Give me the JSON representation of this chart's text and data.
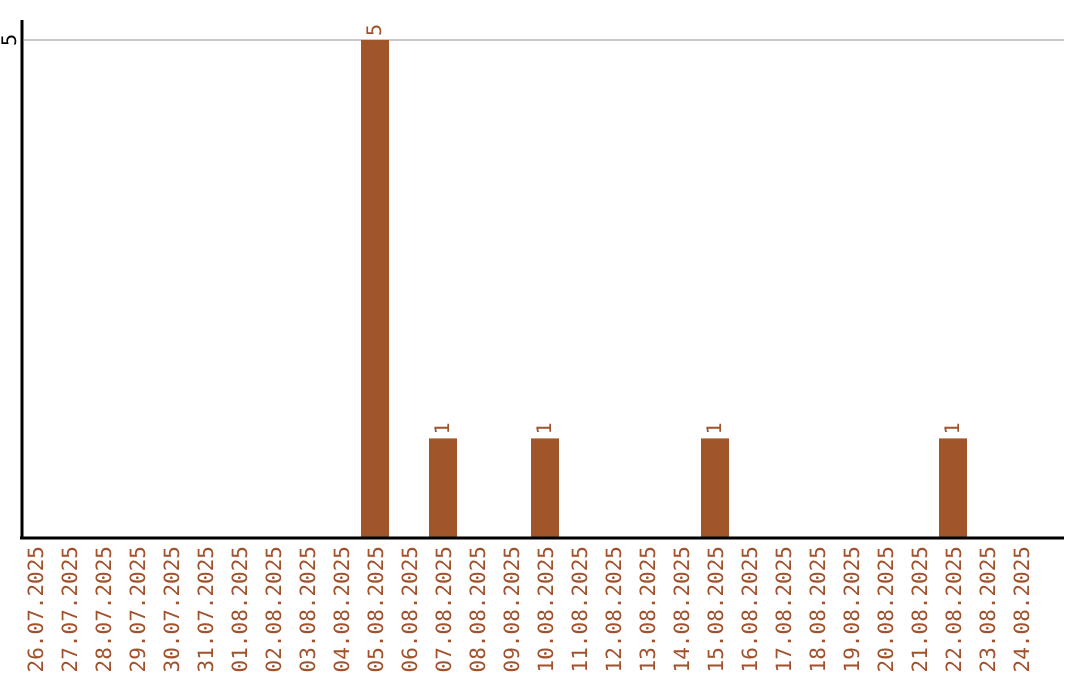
{
  "chart_data": {
    "type": "bar",
    "categories": [
      "26.07.2025",
      "27.07.2025",
      "28.07.2025",
      "29.07.2025",
      "30.07.2025",
      "31.07.2025",
      "01.08.2025",
      "02.08.2025",
      "03.08.2025",
      "04.08.2025",
      "05.08.2025",
      "06.08.2025",
      "07.08.2025",
      "08.08.2025",
      "09.08.2025",
      "10.08.2025",
      "11.08.2025",
      "12.08.2025",
      "13.08.2025",
      "14.08.2025",
      "15.08.2025",
      "16.08.2025",
      "17.08.2025",
      "18.08.2025",
      "19.08.2025",
      "20.08.2025",
      "21.08.2025",
      "22.08.2025",
      "23.08.2025",
      "24.08.2025"
    ],
    "values": [
      0,
      0,
      0,
      0,
      0,
      0,
      0,
      0,
      0,
      0,
      5,
      0,
      1,
      0,
      0,
      1,
      0,
      0,
      0,
      0,
      1,
      0,
      0,
      0,
      0,
      0,
      0,
      1,
      0,
      0
    ],
    "value_labels": [
      null,
      null,
      null,
      null,
      null,
      null,
      null,
      null,
      null,
      null,
      "5",
      null,
      "1",
      null,
      null,
      "1",
      null,
      null,
      null,
      null,
      "1",
      null,
      null,
      null,
      null,
      null,
      null,
      "1",
      null,
      null
    ],
    "color": "#a0562a",
    "ylim": [
      0,
      5
    ],
    "yticks": [
      5
    ],
    "ref_lines": [
      {
        "axis": "y",
        "value": 5,
        "color": "#c8c8c8"
      }
    ]
  }
}
